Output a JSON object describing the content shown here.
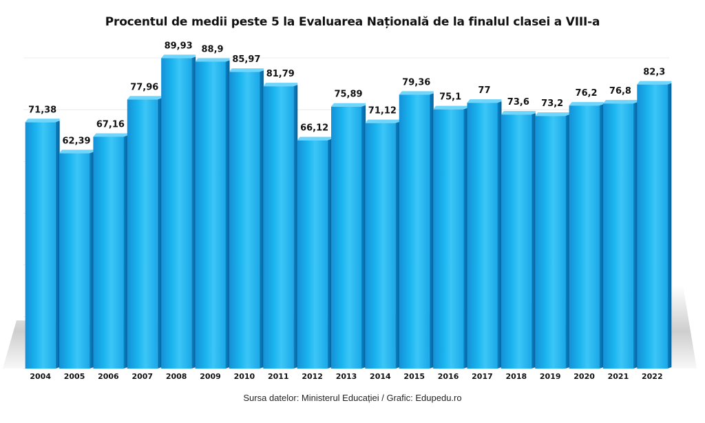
{
  "chart_data": {
    "type": "bar",
    "title": "Procentul de medii peste 5 la Evaluarea Națională de la finalul clasei a VIII-a",
    "xlabel": "",
    "ylabel": "",
    "categories": [
      "2004",
      "2005",
      "2006",
      "2007",
      "2008",
      "2009",
      "2010",
      "2011",
      "2012",
      "2013",
      "2014",
      "2015",
      "2016",
      "2017",
      "2018",
      "2019",
      "2020",
      "2021",
      "2022"
    ],
    "values": [
      71.38,
      62.39,
      67.16,
      77.96,
      89.93,
      88.9,
      85.97,
      81.79,
      66.12,
      75.89,
      71.12,
      79.36,
      75.1,
      77,
      73.6,
      73.2,
      76.2,
      76.8,
      82.3
    ],
    "value_labels": [
      "71,38",
      "62,39",
      "67,16",
      "77,96",
      "89,93",
      "88,9",
      "85,97",
      "81,79",
      "66,12",
      "75,89",
      "71,12",
      "79,36",
      "75,1",
      "77",
      "73,6",
      "73,2",
      "76,2",
      "76,8",
      "82,3"
    ],
    "ylim": [
      0,
      90
    ],
    "grid": true,
    "legend": "none",
    "colors": {
      "bar_front": "#1ab4ef",
      "bar_side": "#0a7fc0",
      "bar_top": "#6fd5fb",
      "grid": "#dddddd"
    },
    "source": "Sursa datelor: Ministerul Educației / Grafic: Edupedu.ro"
  }
}
